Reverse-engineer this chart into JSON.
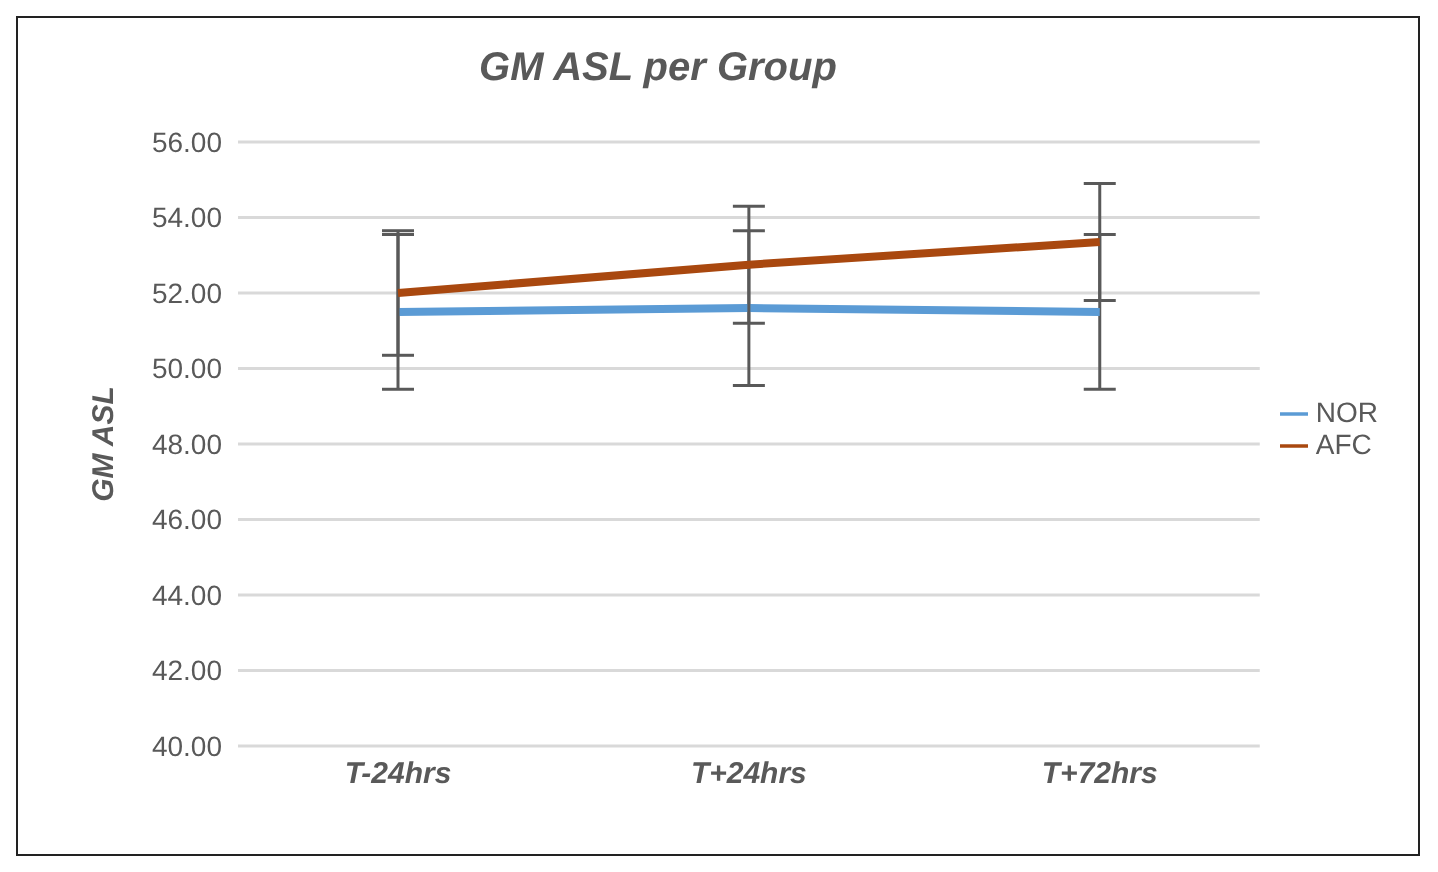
{
  "chart_data": {
    "type": "line",
    "title": "GM ASL per Group",
    "ylabel": "GM ASL",
    "categories": [
      "T-24hrs",
      "T+24hrs",
      "T+72hrs"
    ],
    "series": [
      {
        "name": "NOR",
        "color": "#5b9bd5",
        "values": [
          51.5,
          51.6,
          51.5
        ],
        "errors": [
          2.05,
          2.05,
          2.05
        ]
      },
      {
        "name": "AFC",
        "color": "#a9480f",
        "values": [
          52.0,
          52.75,
          53.35
        ],
        "errors": [
          1.65,
          1.55,
          1.55
        ]
      }
    ],
    "ylim": [
      40,
      56
    ],
    "yticks": [
      {
        "value": 40,
        "label": "40.00"
      },
      {
        "value": 42,
        "label": "42.00"
      },
      {
        "value": 44,
        "label": "44.00"
      },
      {
        "value": 46,
        "label": "46.00"
      },
      {
        "value": 48,
        "label": "48.00"
      },
      {
        "value": 50,
        "label": "50.00"
      },
      {
        "value": 52,
        "label": "52.00"
      },
      {
        "value": 54,
        "label": "54.00"
      },
      {
        "value": 56,
        "label": "56.00"
      }
    ],
    "grid": "y",
    "legend": "right",
    "marker": "none",
    "line_style": "solid"
  }
}
